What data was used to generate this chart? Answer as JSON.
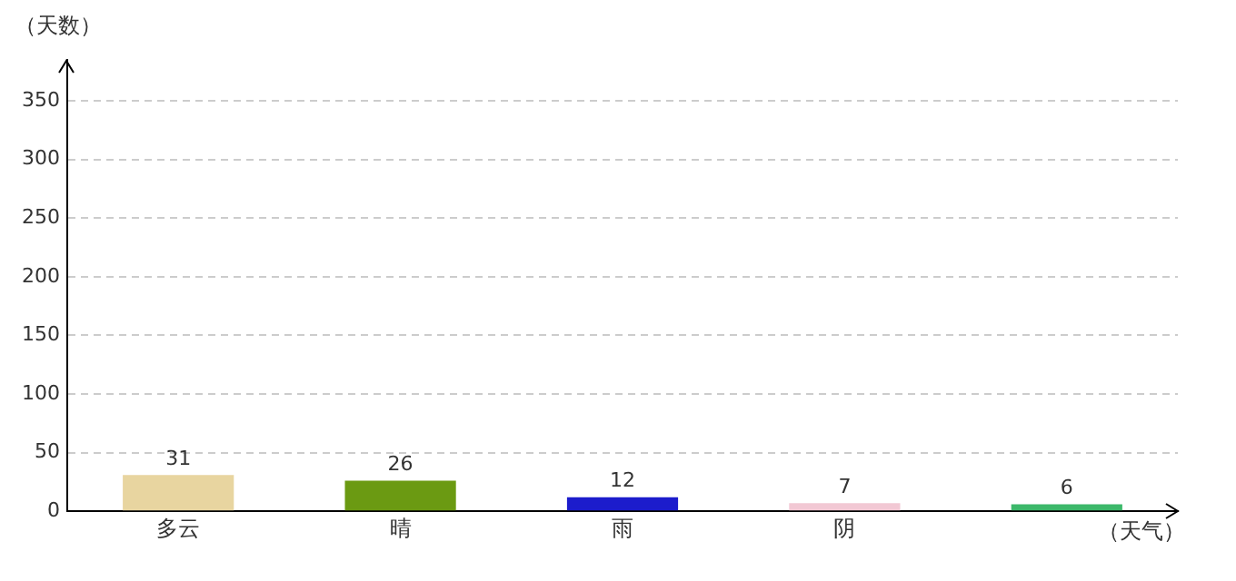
{
  "chart_data": {
    "type": "bar",
    "ylabel": "（天数）",
    "xlabel": "（天气）",
    "categories": [
      "多云",
      "晴",
      "雨",
      "阴",
      null
    ],
    "values": [
      31,
      26,
      12,
      7,
      6
    ],
    "colors": [
      "#e8d5a0",
      "#6b9a12",
      "#1c1ccc",
      "#f2c8d4",
      "#3cb86a"
    ],
    "ylim": [
      0,
      385
    ],
    "yticks": [
      0,
      50,
      100,
      150,
      200,
      250,
      300,
      350
    ],
    "grid": "y",
    "data_labels": true,
    "legend": false
  }
}
